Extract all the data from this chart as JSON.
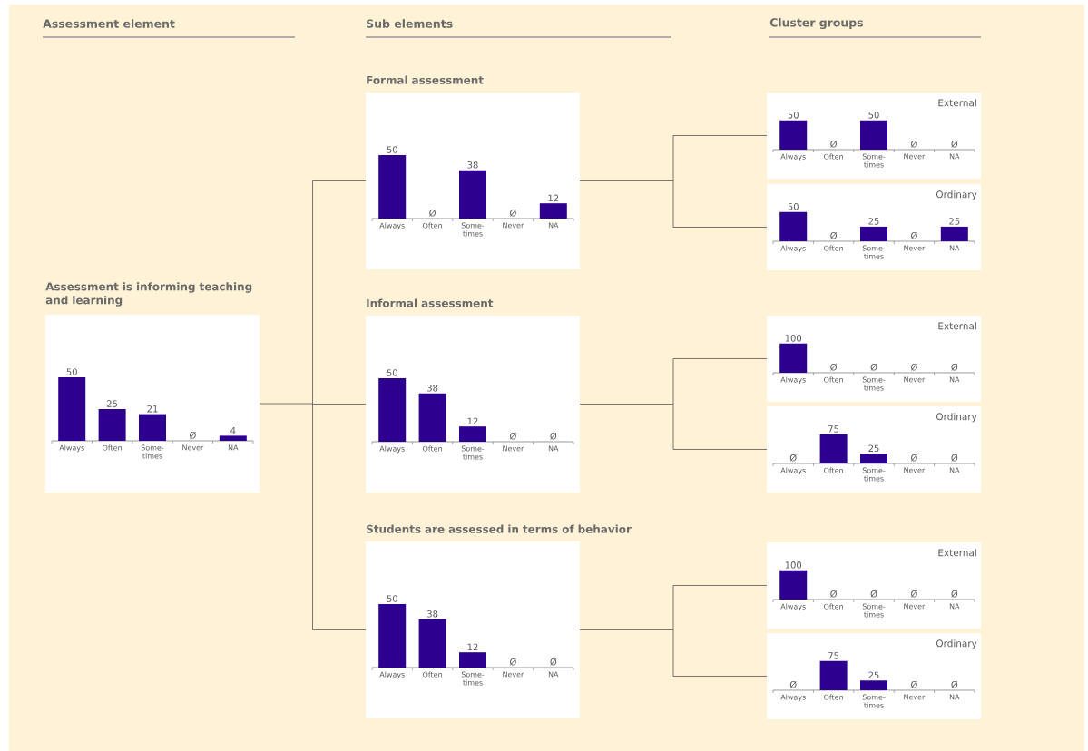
{
  "chart_data": [
    {
      "type": "other",
      "annotations": [
        "Assessment element",
        "Sub elements",
        "Cluster groups"
      ]
    },
    {
      "type": "bar",
      "title": "Assessment is informing teaching and learning",
      "categories": [
        "Always",
        "Often",
        "Some-times",
        "Never",
        "NA"
      ],
      "values": [
        50,
        25,
        21,
        0,
        4
      ],
      "value_labels": [
        "50",
        "25",
        "21",
        "Ø",
        "4"
      ],
      "color": "#2e0090"
    },
    {
      "type": "bar",
      "title": "Formal assessment",
      "categories": [
        "Always",
        "Often",
        "Some-times",
        "Never",
        "NA"
      ],
      "values": [
        50,
        0,
        38,
        0,
        12
      ],
      "value_labels": [
        "50",
        "Ø",
        "38",
        "Ø",
        "12"
      ],
      "color": "#2e0090"
    },
    {
      "type": "bar",
      "title": "Informal assessment",
      "categories": [
        "Always",
        "Often",
        "Some-times",
        "Never",
        "NA"
      ],
      "values": [
        50,
        38,
        12,
        0,
        0
      ],
      "value_labels": [
        "50",
        "38",
        "12",
        "Ø",
        "Ø"
      ],
      "color": "#2e0090"
    },
    {
      "type": "bar",
      "title": "Students are assessed in terms of behavior",
      "categories": [
        "Always",
        "Often",
        "Some-times",
        "Never",
        "NA"
      ],
      "values": [
        50,
        38,
        12,
        0,
        0
      ],
      "value_labels": [
        "50",
        "38",
        "12",
        "Ø",
        "Ø"
      ],
      "color": "#2e0090"
    },
    {
      "type": "bar",
      "title": "External",
      "categories": [
        "Always",
        "Often",
        "Some-times",
        "Never",
        "NA"
      ],
      "values": [
        50,
        0,
        50,
        0,
        0
      ],
      "value_labels": [
        "50",
        "Ø",
        "50",
        "Ø",
        "Ø"
      ],
      "color": "#2e0090"
    },
    {
      "type": "bar",
      "title": "Ordinary",
      "categories": [
        "Always",
        "Often",
        "Some-times",
        "Never",
        "NA"
      ],
      "values": [
        50,
        0,
        25,
        0,
        25
      ],
      "value_labels": [
        "50",
        "Ø",
        "25",
        "Ø",
        "25"
      ],
      "color": "#2e0090"
    },
    {
      "type": "bar",
      "title": "External",
      "categories": [
        "Always",
        "Often",
        "Some-times",
        "Never",
        "NA"
      ],
      "values": [
        100,
        0,
        0,
        0,
        0
      ],
      "value_labels": [
        "100",
        "Ø",
        "Ø",
        "Ø",
        "Ø"
      ],
      "color": "#2e0090"
    },
    {
      "type": "bar",
      "title": "Ordinary",
      "categories": [
        "Always",
        "Often",
        "Some-times",
        "Never",
        "NA"
      ],
      "values": [
        0,
        75,
        25,
        0,
        0
      ],
      "value_labels": [
        "Ø",
        "75",
        "25",
        "Ø",
        "Ø"
      ],
      "color": "#2e0090"
    },
    {
      "type": "bar",
      "title": "External",
      "categories": [
        "Always",
        "Often",
        "Some-times",
        "Never",
        "NA"
      ],
      "values": [
        100,
        0,
        0,
        0,
        0
      ],
      "value_labels": [
        "100",
        "Ø",
        "Ø",
        "Ø",
        "Ø"
      ],
      "color": "#2e0090"
    },
    {
      "type": "bar",
      "title": "Ordinary",
      "categories": [
        "Always",
        "Often",
        "Some-times",
        "Never",
        "NA"
      ],
      "values": [
        0,
        75,
        25,
        0,
        0
      ],
      "value_labels": [
        "Ø",
        "75",
        "25",
        "Ø",
        "Ø"
      ],
      "color": "#2e0090"
    }
  ]
}
